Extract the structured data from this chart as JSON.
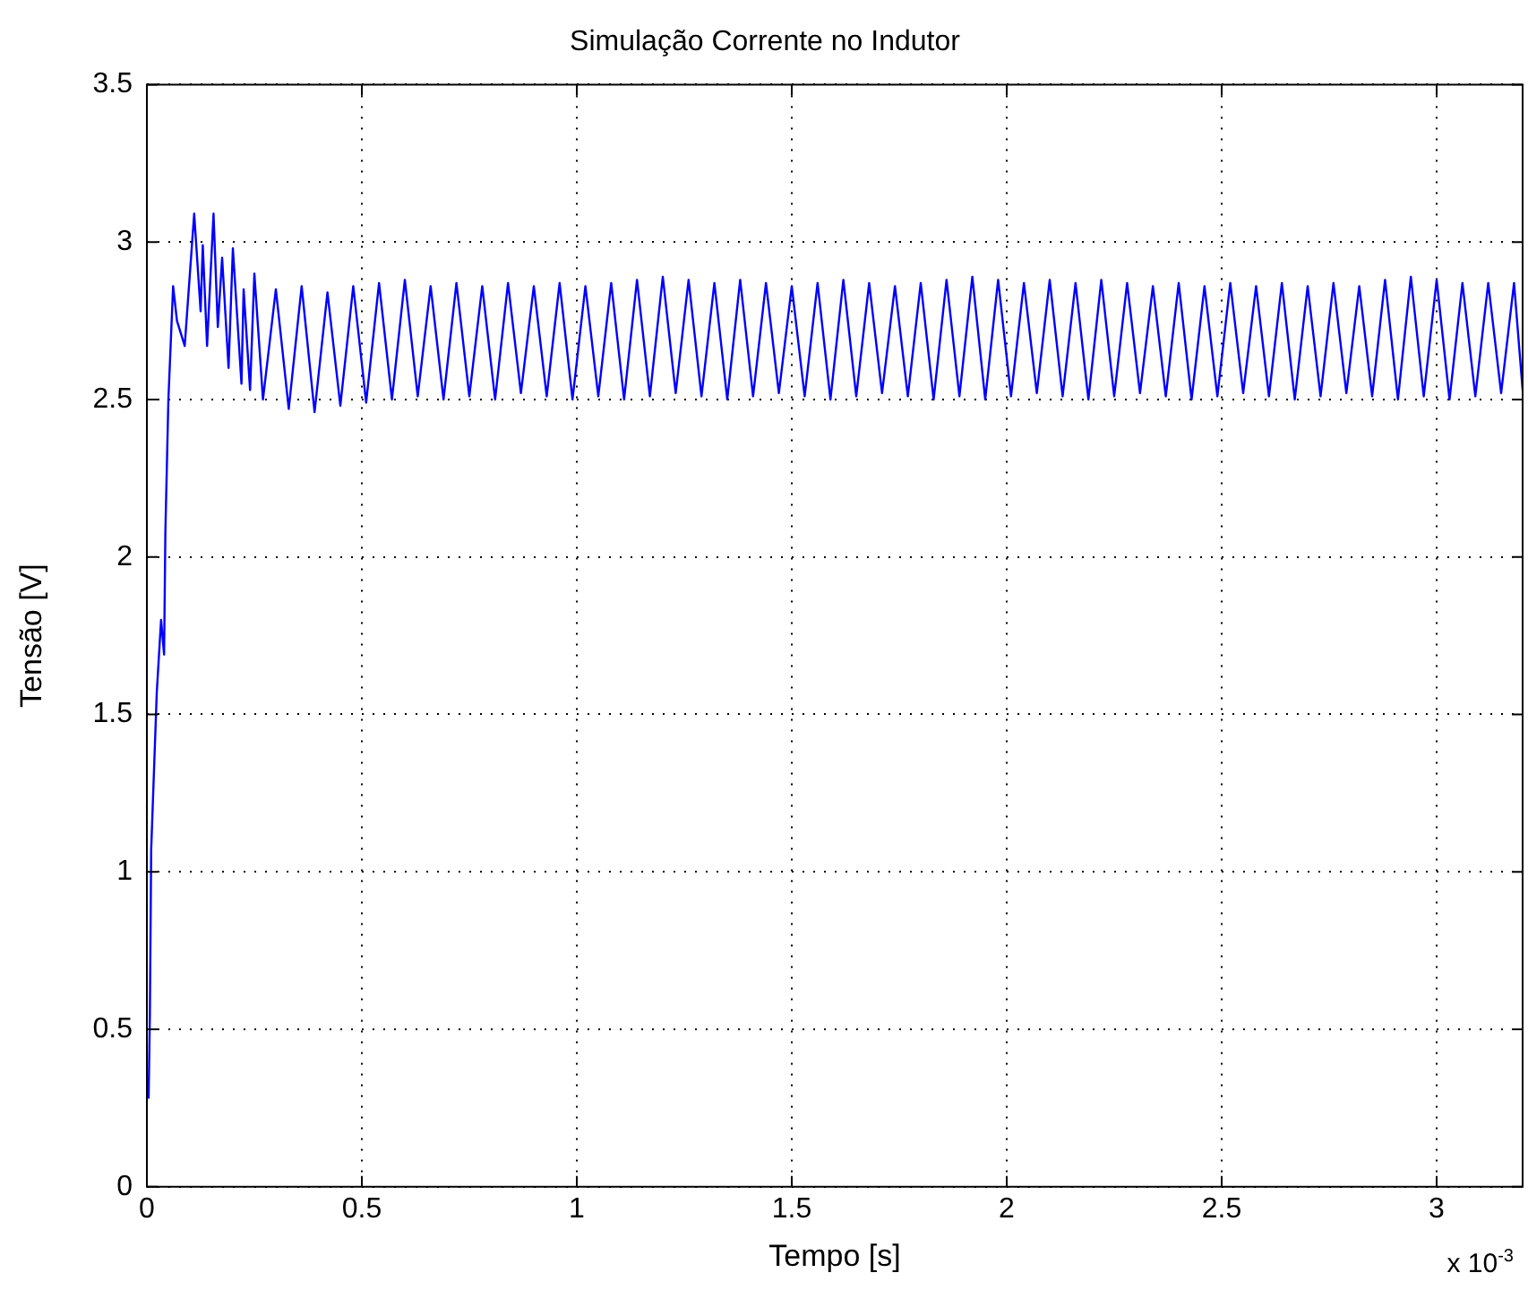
{
  "chart_data": {
    "type": "line",
    "title": "Simulação Corrente no Indutor",
    "xlabel": "Tempo [s]",
    "ylabel": "Tensão [V]",
    "annotations": [
      "x 10$^{-3}$"
    ],
    "x": [
      0.004,
      0.007,
      0.01,
      0.023,
      0.033,
      0.04,
      0.043,
      0.05,
      0.061,
      0.07,
      0.088,
      0.11,
      0.125,
      0.13,
      0.14,
      0.155,
      0.165,
      0.175,
      0.19,
      0.2,
      0.22,
      0.225,
      0.24,
      0.25,
      0.27,
      0.3,
      0.33,
      0.36,
      0.39,
      0.42,
      0.45,
      0.48,
      0.51,
      0.54,
      0.57,
      0.6,
      0.63,
      0.66,
      0.69,
      0.72,
      0.75,
      0.78,
      0.81,
      0.84,
      0.87,
      0.9,
      0.93,
      0.96,
      0.99,
      1.02,
      1.05,
      1.08,
      1.11,
      1.14,
      1.17,
      1.2,
      1.23,
      1.26,
      1.29,
      1.32,
      1.35,
      1.38,
      1.41,
      1.44,
      1.47,
      1.5,
      1.53,
      1.56,
      1.59,
      1.62,
      1.65,
      1.68,
      1.71,
      1.74,
      1.77,
      1.8,
      1.83,
      1.86,
      1.89,
      1.92,
      1.95,
      1.98,
      2.01,
      2.04,
      2.07,
      2.1,
      2.13,
      2.16,
      2.19,
      2.22,
      2.25,
      2.28,
      2.31,
      2.34,
      2.37,
      2.4,
      2.43,
      2.46,
      2.49,
      2.52,
      2.55,
      2.58,
      2.61,
      2.64,
      2.67,
      2.7,
      2.73,
      2.76,
      2.79,
      2.82,
      2.85,
      2.88,
      2.91,
      2.94,
      2.97,
      3.0,
      3.03,
      3.06,
      3.09,
      3.12,
      3.15,
      3.18,
      3.2
    ],
    "series": [
      {
        "color": "#0000ff",
        "values": [
          0.28,
          0.55,
          1.07,
          1.57,
          1.8,
          1.69,
          2.08,
          2.5,
          2.86,
          2.75,
          2.67,
          3.09,
          2.78,
          2.99,
          2.67,
          3.09,
          2.73,
          2.95,
          2.6,
          2.98,
          2.55,
          2.85,
          2.53,
          2.9,
          2.5,
          2.85,
          2.47,
          2.86,
          2.46,
          2.84,
          2.48,
          2.86,
          2.49,
          2.87,
          2.5,
          2.88,
          2.51,
          2.86,
          2.5,
          2.87,
          2.51,
          2.86,
          2.5,
          2.87,
          2.52,
          2.86,
          2.51,
          2.87,
          2.5,
          2.86,
          2.51,
          2.87,
          2.5,
          2.88,
          2.51,
          2.89,
          2.52,
          2.88,
          2.51,
          2.87,
          2.5,
          2.88,
          2.51,
          2.87,
          2.52,
          2.86,
          2.51,
          2.87,
          2.5,
          2.88,
          2.51,
          2.87,
          2.52,
          2.86,
          2.51,
          2.87,
          2.5,
          2.88,
          2.51,
          2.89,
          2.5,
          2.88,
          2.51,
          2.87,
          2.52,
          2.88,
          2.51,
          2.87,
          2.5,
          2.88,
          2.51,
          2.87,
          2.52,
          2.86,
          2.51,
          2.87,
          2.5,
          2.86,
          2.51,
          2.87,
          2.52,
          2.86,
          2.51,
          2.87,
          2.5,
          2.86,
          2.51,
          2.87,
          2.52,
          2.86,
          2.51,
          2.88,
          2.5,
          2.89,
          2.51,
          2.88,
          2.5,
          2.87,
          2.51,
          2.87,
          2.52,
          2.87,
          2.53
        ]
      }
    ],
    "xlim": [
      0,
      3.2
    ],
    "xticks": [
      0,
      0.5,
      1,
      1.5,
      2,
      2.5,
      3
    ],
    "ylim": [
      0,
      3.5
    ],
    "yticks": [
      0,
      0.5,
      1,
      1.5,
      2,
      2.5,
      3,
      3.5
    ],
    "grid": true
  }
}
